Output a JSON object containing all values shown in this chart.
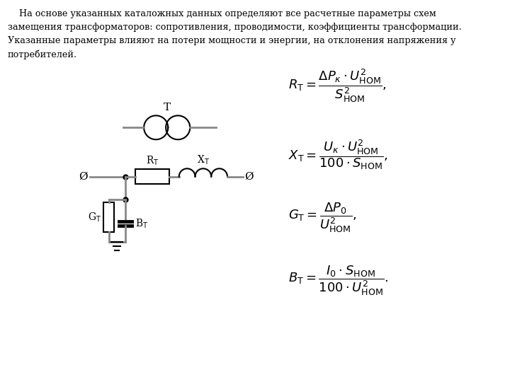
{
  "background_color": "#ffffff",
  "para_line1": "    На основе указанных каталожных данных определяют все расчетные параметры схем",
  "para_line2": "замещения трансформаторов: сопротивления, проводимости, коэффициенты трансформации.",
  "para_line3": "Указанные параметры влияют на потери мощности и энергии, на отклонения напряжения у",
  "para_line4": "потребителей.",
  "label_T": "T",
  "label_Rt": "R$_\\mathrm{T}$",
  "label_Xt": "X$_\\mathrm{T}$",
  "label_Gt": "G$_\\mathrm{T}$",
  "label_Bt": "B$_\\mathrm{T}$",
  "label_phi": "Ø",
  "formula1": "$R_{\\mathrm{T}} = \\dfrac{\\Delta P_{\\kappa} \\cdot U_{\\mathrm{HOM}}^{2}}{S_{\\mathrm{HOM}}^{2}},$",
  "formula2": "$X_{\\mathrm{T}} = \\dfrac{U_{\\kappa} \\cdot U_{\\mathrm{HOM}}^{2}}{100 \\cdot S_{\\mathrm{HOM}}},$",
  "formula3": "$G_{\\mathrm{T}} = \\dfrac{\\Delta P_{0}}{U_{\\mathrm{HOM}}^{2}},$",
  "formula4": "$B_{\\mathrm{T}} = \\dfrac{I_{0} \\cdot S_{\\mathrm{HOM}}}{100 \\cdot U_{\\mathrm{HOM}}^{2}}.$",
  "gray": "#888888",
  "black": "#000000",
  "lw": 1.5
}
